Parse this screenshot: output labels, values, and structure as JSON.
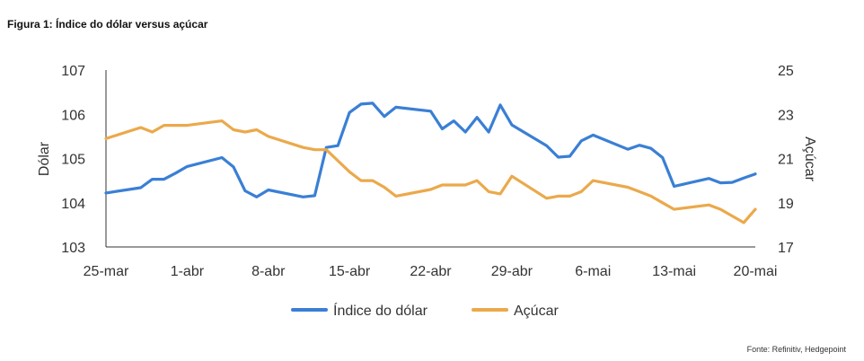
{
  "figure": {
    "title": "Figura 1: Índice do dólar versus açúcar",
    "source": "Fonte: Refinitiv, Hedgepoint"
  },
  "chart_data": {
    "type": "line",
    "x_tick_labels": [
      "25-mar",
      "1-abr",
      "8-abr",
      "15-abr",
      "22-abr",
      "29-abr",
      "6-mai",
      "13-mai",
      "20-mai"
    ],
    "x_range_days": [
      0,
      56
    ],
    "x": [
      0,
      3,
      4,
      5,
      6,
      7,
      10,
      11,
      12,
      13,
      14,
      17,
      18,
      19,
      20,
      21,
      22,
      23,
      24,
      25,
      28,
      29,
      30,
      31,
      32,
      33,
      34,
      35,
      38,
      39,
      40,
      41,
      42,
      45,
      46,
      47,
      48,
      49,
      52,
      53,
      54,
      55,
      56
    ],
    "left_axis": {
      "label": "Dólar",
      "ylim": [
        103,
        107
      ],
      "ticks": [
        103,
        104,
        105,
        106,
        107
      ]
    },
    "right_axis": {
      "label": "Açúcar",
      "ylim": [
        17,
        25
      ],
      "ticks": [
        17,
        19,
        21,
        23,
        25
      ]
    },
    "series": [
      {
        "name": "Índice do dólar",
        "axis": "left",
        "color": "#3a7fd5",
        "values": [
          104.22,
          104.34,
          104.53,
          104.53,
          104.67,
          104.82,
          105.02,
          104.81,
          104.27,
          104.13,
          104.29,
          104.13,
          104.16,
          105.25,
          105.29,
          106.04,
          106.23,
          106.25,
          105.95,
          106.16,
          106.07,
          105.67,
          105.85,
          105.6,
          105.93,
          105.6,
          106.21,
          105.76,
          105.29,
          105.03,
          105.05,
          105.4,
          105.53,
          105.21,
          105.3,
          105.23,
          105.02,
          104.37,
          104.55,
          104.45,
          104.46,
          104.56,
          104.65
        ]
      },
      {
        "name": "Açúcar",
        "axis": "right",
        "color": "#eba94b",
        "values": [
          21.9,
          22.4,
          22.2,
          22.5,
          22.5,
          22.5,
          22.7,
          22.3,
          22.2,
          22.3,
          22.0,
          21.5,
          21.4,
          21.4,
          20.9,
          20.4,
          20.0,
          20.0,
          19.7,
          19.3,
          19.6,
          19.8,
          19.8,
          19.8,
          20.0,
          19.5,
          19.4,
          20.2,
          19.2,
          19.3,
          19.3,
          19.5,
          20.0,
          19.7,
          19.5,
          19.3,
          19.0,
          18.7,
          18.9,
          18.7,
          18.4,
          18.1,
          18.7
        ]
      }
    ],
    "legend_position": "bottom"
  }
}
